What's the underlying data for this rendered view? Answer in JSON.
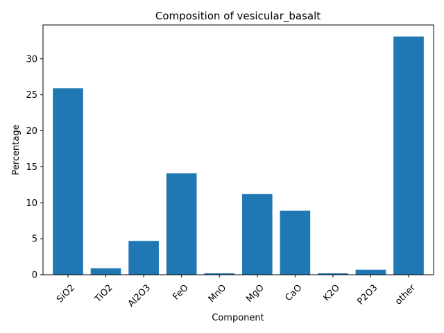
{
  "chart_data": {
    "type": "bar",
    "title": "Composition of vesicular_basalt",
    "xlabel": "Component",
    "ylabel": "Percentage",
    "categories": [
      "SiO2",
      "TiO2",
      "Al2O3",
      "FeO",
      "MnO",
      "MgO",
      "CaO",
      "K2O",
      "P2O3",
      "other"
    ],
    "values": [
      25.9,
      0.9,
      4.7,
      14.1,
      0.2,
      11.2,
      8.9,
      0.2,
      0.7,
      33.1
    ],
    "ylim": [
      0,
      34.7
    ],
    "yticks": [
      0,
      5,
      10,
      15,
      20,
      25,
      30
    ],
    "bar_color": "#1f77b4",
    "grid": false,
    "legend": "none"
  }
}
